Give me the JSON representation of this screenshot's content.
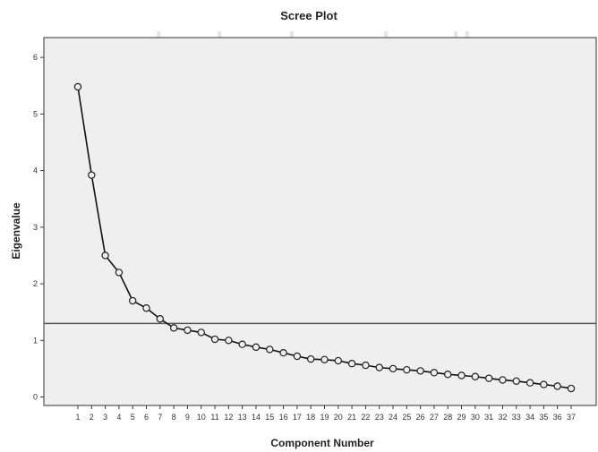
{
  "watermark": "پرتال جامع علوم انسانی",
  "chart_data": {
    "type": "line",
    "title": "Scree Plot",
    "xlabel": "Component Number",
    "ylabel": "Eigenvalue",
    "ylim": [
      -0.15,
      6.35
    ],
    "yticks": [
      0,
      1,
      2,
      3,
      4,
      5,
      6
    ],
    "grid": false,
    "reference_line_y": 1.3,
    "x": [
      1,
      2,
      3,
      4,
      5,
      6,
      7,
      8,
      9,
      10,
      11,
      12,
      13,
      14,
      15,
      16,
      17,
      18,
      19,
      20,
      21,
      22,
      23,
      24,
      25,
      26,
      27,
      28,
      29,
      30,
      31,
      32,
      33,
      34,
      35,
      36,
      37
    ],
    "values": [
      5.48,
      3.92,
      2.5,
      2.2,
      1.7,
      1.57,
      1.38,
      1.22,
      1.18,
      1.14,
      1.02,
      1.0,
      0.93,
      0.88,
      0.84,
      0.78,
      0.72,
      0.67,
      0.66,
      0.64,
      0.59,
      0.56,
      0.52,
      0.5,
      0.48,
      0.46,
      0.43,
      0.4,
      0.38,
      0.36,
      0.33,
      0.3,
      0.28,
      0.25,
      0.22,
      0.19,
      0.15
    ],
    "colors": {
      "plot_background": "#efefef",
      "frame": "#333333",
      "line": "#111111",
      "marker_edge": "#222222",
      "reference_line": "#555555"
    }
  }
}
